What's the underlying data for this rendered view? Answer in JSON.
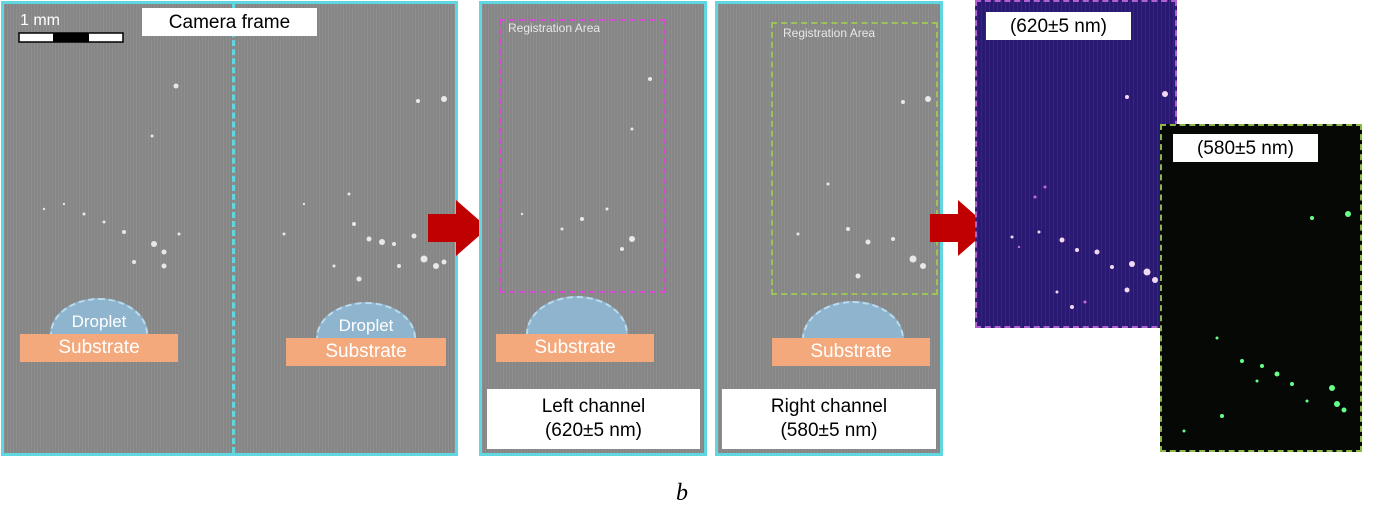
{
  "scale_bar": {
    "label": "1 mm"
  },
  "camera_frame": {
    "title": "Camera frame",
    "left_half": {
      "droplet": "Droplet",
      "substrate": "Substrate"
    },
    "right_half": {
      "droplet": "Droplet",
      "substrate": "Substrate"
    }
  },
  "left_channel": {
    "registration": "Registration Area",
    "substrate": "Substrate",
    "caption_line1": "Left channel",
    "caption_line2": "(620±5 nm)"
  },
  "right_channel": {
    "registration": "Registration Area",
    "substrate": "Substrate",
    "caption_line1": "Right channel",
    "caption_line2": "(580±5 nm)"
  },
  "output_620": {
    "label": "(620±5 nm)"
  },
  "output_580": {
    "label": "(580±5 nm)"
  },
  "figure_letter": "b",
  "colors": {
    "panel_border": "#5fd6e0",
    "arrow": "#c00000",
    "registration_left": "#d050d0",
    "registration_right": "#9cc25a",
    "substrate": "#f4a97d",
    "droplet": "#8fb5ce"
  }
}
